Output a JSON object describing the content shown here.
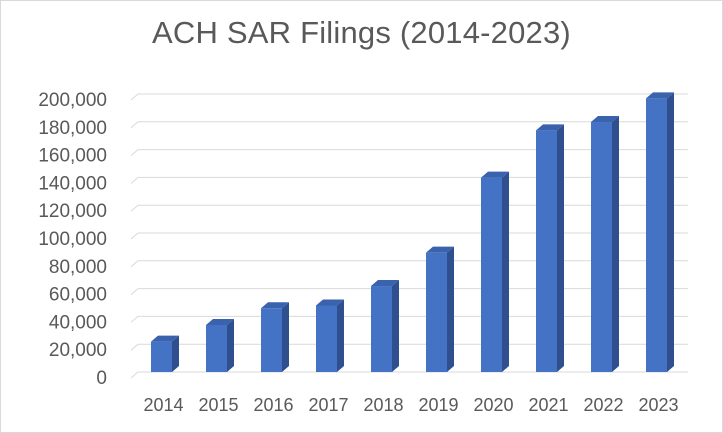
{
  "chart_data": {
    "type": "bar",
    "title": "ACH SAR Filings (2014-2023)",
    "xlabel": "",
    "ylabel": "",
    "categories": [
      "2014",
      "2015",
      "2016",
      "2017",
      "2018",
      "2019",
      "2020",
      "2021",
      "2022",
      "2023"
    ],
    "values": [
      24000,
      36000,
      48000,
      50000,
      64000,
      88000,
      142000,
      176000,
      182000,
      199000
    ],
    "ylim": [
      0,
      200000
    ],
    "yticks": [
      "0",
      "20,000",
      "40,000",
      "60,000",
      "80,000",
      "100,000",
      "120,000",
      "140,000",
      "160,000",
      "180,000",
      "200,000"
    ],
    "grid": true,
    "legend": "none",
    "bar_color": "#4472c4",
    "bar_side_color": "#2f4f8f",
    "bar_top_color": "#3a62ad"
  }
}
